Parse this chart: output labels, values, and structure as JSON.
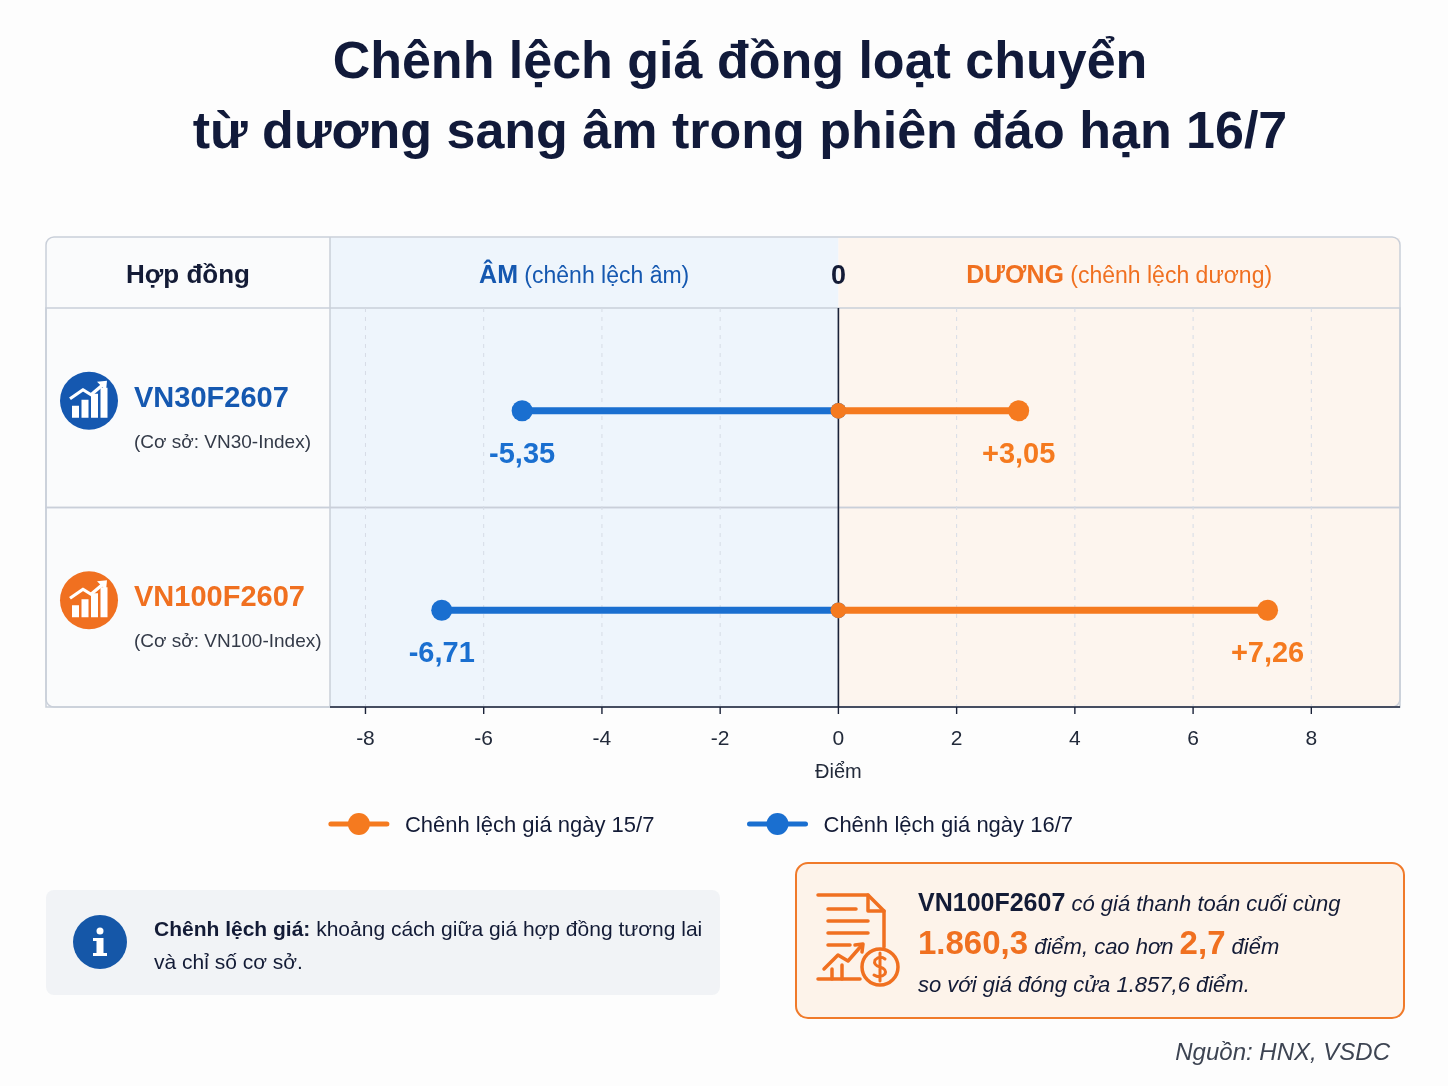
{
  "chart_data": {
    "type": "lollipop",
    "orientation": "horizontal",
    "title": "Chênh lệch giá đồng loạt chuyển\ntừ dương sang âm trong phiên đáo hạn 16/7",
    "xlabel": "Điểm",
    "categories": [
      "VN30F2607\n(Cơ sở: VN30-Index)",
      "VN100F2607\n(Cơ sở: VN100-Index)"
    ],
    "series": [
      {
        "name": "Chênh lệch giá ngày 15/7",
        "color": "#f57a1f",
        "values": [
          3.05,
          7.26
        ],
        "value_labels": [
          "+3,05",
          "+7,26"
        ]
      },
      {
        "name": "Chênh lệch giá ngày 16/7",
        "color": "#1a6fd0",
        "values": [
          -5.35,
          -6.71
        ],
        "value_labels": [
          "-5,35",
          "-6,71"
        ]
      }
    ],
    "xlim": [
      -8.6,
      9.5
    ],
    "xticks": [
      -8,
      -6,
      -4,
      -2,
      0,
      2,
      4,
      6,
      8
    ],
    "grid": "x",
    "legend": "bottom",
    "marker": "circle",
    "bands": [
      {
        "axis": "x",
        "from": -8.6,
        "to": 0,
        "label": "ÂM (chênh lệch âm)",
        "color": "#eef5fc"
      },
      {
        "axis": "x",
        "from": 0,
        "to": 9.5,
        "label": "DƯƠNG (chênh lệch dương)",
        "color": "#fdf5ee"
      }
    ],
    "ref_lines": [
      {
        "axis": "x",
        "value": 0,
        "label": "0",
        "color": "#1a2238"
      }
    ],
    "annotations": [
      "Hợp đồng",
      "Chênh lệch giá: khoảng cách giữa giá hợp đồng tương lai\nvà chỉ số cơ sở.",
      "VN100F2607 có giá thanh toán cuối cùng\n1.860,3 điểm, cao hơn 2,7 điểm\nso với giá đóng cửa 1.857,6 điểm.",
      "Nguồn: HNX, VSDC"
    ]
  }
}
